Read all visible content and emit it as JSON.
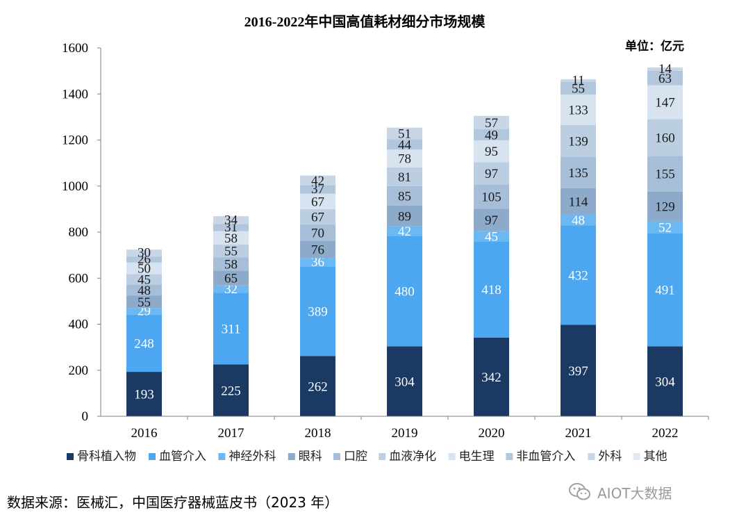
{
  "chart_data": {
    "type": "bar",
    "stacked": true,
    "title": "2016-2022年中国高值耗材细分市场规模",
    "unit_label": "单位：亿元",
    "xlabel": "",
    "ylabel": "",
    "ylim": [
      0,
      1600
    ],
    "yticks": [
      0,
      200,
      400,
      600,
      800,
      1000,
      1200,
      1400,
      1600
    ],
    "categories": [
      "2016",
      "2017",
      "2018",
      "2019",
      "2020",
      "2021",
      "2022"
    ],
    "series": [
      {
        "name": "骨科植入物",
        "color": "#1b3a63",
        "label_color": "#ffffff",
        "values": [
          193,
          225,
          262,
          304,
          342,
          397,
          304
        ]
      },
      {
        "name": "血管介入",
        "color": "#4ca6f0",
        "label_color": "#ffffff",
        "values": [
          248,
          311,
          389,
          480,
          418,
          432,
          491
        ]
      },
      {
        "name": "神经外科",
        "color": "#6cb8f2",
        "label_color": "#ffffff",
        "values": [
          29,
          32,
          36,
          42,
          45,
          48,
          52
        ]
      },
      {
        "name": "眼科",
        "color": "#8eaacb",
        "label_color": "#1a1a1a",
        "values": [
          55,
          65,
          76,
          89,
          97,
          114,
          129
        ]
      },
      {
        "name": "口腔",
        "color": "#a7bed8",
        "label_color": "#1a1a1a",
        "values": [
          48,
          58,
          70,
          85,
          105,
          135,
          155
        ]
      },
      {
        "name": "血液净化",
        "color": "#bccee2",
        "label_color": "#1a1a1a",
        "values": [
          45,
          55,
          67,
          81,
          97,
          139,
          160
        ]
      },
      {
        "name": "电生理",
        "color": "#d7e3ef",
        "label_color": "#1a1a1a",
        "values": [
          50,
          58,
          67,
          78,
          95,
          133,
          147
        ]
      },
      {
        "name": "非血管介入",
        "color": "#b2c6dc",
        "label_color": "#1a1a1a",
        "values": [
          26,
          31,
          37,
          44,
          49,
          55,
          63
        ]
      },
      {
        "name": "外科",
        "color": "#c8d6e6",
        "label_color": "#1a1a1a",
        "values": [
          30,
          34,
          42,
          51,
          57,
          11,
          14
        ]
      },
      {
        "name": "其他",
        "color": "#e0e8f1",
        "label_color": "#1a1a1a",
        "values": [
          0,
          0,
          0,
          0,
          0,
          0,
          0
        ]
      }
    ],
    "legend_position": "bottom",
    "grid": false
  },
  "source": "数据来源：医械汇，中国医疗器械蓝皮书（2023 年）",
  "watermark": "AIOT大数据"
}
